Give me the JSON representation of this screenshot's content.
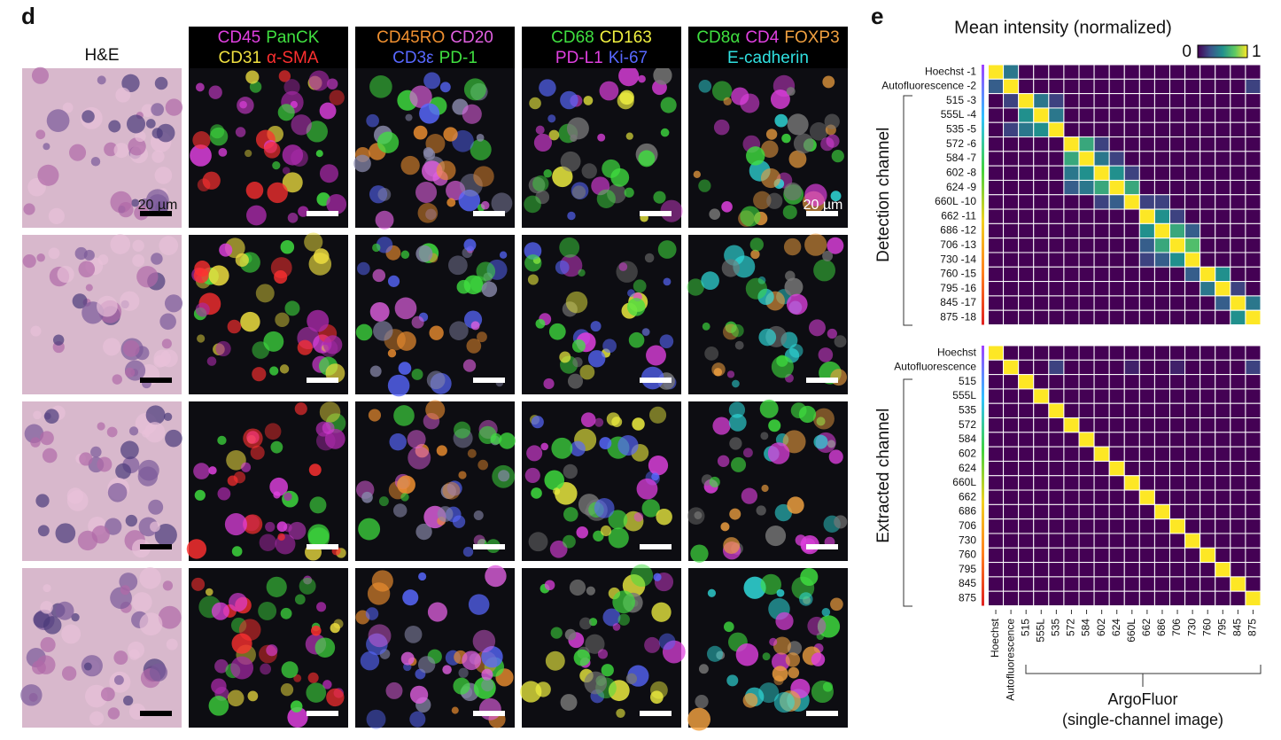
{
  "panel_d": {
    "label": "d",
    "he_title": "H&E",
    "scale_label": "20 µm",
    "headers": [
      [
        [
          {
            "text": "CD45",
            "color": "#e040e0"
          },
          {
            "text": "PanCK",
            "color": "#40e040"
          }
        ],
        [
          {
            "text": "CD31",
            "color": "#f0e040"
          },
          {
            "text": "α-SMA",
            "color": "#ff3030"
          }
        ]
      ],
      [
        [
          {
            "text": "CD45RO",
            "color": "#f09030"
          },
          {
            "text": "CD20",
            "color": "#e060e0"
          }
        ],
        [
          {
            "text": "CD3ε",
            "color": "#5868ff"
          },
          {
            "text": "PD-1",
            "color": "#40e040"
          }
        ]
      ],
      [
        [
          {
            "text": "CD68",
            "color": "#40e040"
          },
          {
            "text": "CD163",
            "color": "#f0f040"
          }
        ],
        [
          {
            "text": "PD-L1",
            "color": "#e040e0"
          },
          {
            "text": "Ki-67",
            "color": "#5868ff"
          }
        ]
      ],
      [
        [
          {
            "text": "CD8α",
            "color": "#40e040"
          },
          {
            "text": "CD4",
            "color": "#e040e0"
          },
          {
            "text": "FOXP3",
            "color": "#f0a040"
          }
        ],
        [
          {
            "text": "E-cadherin",
            "color": "#30e0e0"
          }
        ]
      ]
    ]
  },
  "panel_e": {
    "label": "e",
    "title": "Mean intensity (normalized)",
    "colorbar": {
      "min": 0,
      "max": 1
    },
    "x_label": [
      "ArgoFluor",
      "(single-channel image)"
    ],
    "columns": [
      "Hoechst",
      "Autofluorescence",
      "515",
      "555L",
      "535",
      "572",
      "584",
      "602",
      "624",
      "660L",
      "662",
      "686",
      "706",
      "730",
      "760",
      "795",
      "845",
      "875"
    ],
    "heatmaps": [
      {
        "y_label": "Detection channel",
        "rows": [
          "Hoechst -1",
          "Autofluorescence -2",
          "515 -3",
          "555L -4",
          "535 -5",
          "572 -6",
          "584 -7",
          "602 -8",
          "624 -9",
          "660L -10",
          "662 -11",
          "686 -12",
          "706 -13",
          "730 -14",
          "760 -15",
          "795 -16",
          "845 -17",
          "875 -18"
        ],
        "values": [
          [
            1,
            0.4,
            0,
            0,
            0,
            0,
            0,
            0,
            0,
            0,
            0,
            0,
            0,
            0,
            0,
            0,
            0,
            0
          ],
          [
            0.3,
            1,
            0,
            0,
            0,
            0,
            0,
            0,
            0,
            0,
            0,
            0,
            0,
            0,
            0,
            0,
            0,
            0.2
          ],
          [
            0,
            0.2,
            1,
            0.4,
            0.2,
            0,
            0,
            0,
            0,
            0,
            0,
            0,
            0,
            0,
            0,
            0,
            0,
            0
          ],
          [
            0,
            0,
            0.5,
            1,
            0.4,
            0,
            0,
            0,
            0,
            0,
            0,
            0,
            0,
            0,
            0,
            0,
            0,
            0
          ],
          [
            0,
            0.2,
            0.4,
            0.5,
            1,
            0,
            0,
            0,
            0,
            0,
            0,
            0,
            0,
            0,
            0,
            0,
            0,
            0
          ],
          [
            0,
            0,
            0,
            0,
            0,
            1,
            0.6,
            0.2,
            0,
            0,
            0,
            0,
            0,
            0,
            0,
            0,
            0,
            0
          ],
          [
            0,
            0,
            0,
            0,
            0,
            0.6,
            1,
            0.4,
            0.2,
            0,
            0,
            0,
            0,
            0,
            0,
            0,
            0,
            0
          ],
          [
            0,
            0,
            0,
            0,
            0,
            0.4,
            0.5,
            1,
            0.5,
            0.2,
            0,
            0,
            0,
            0,
            0,
            0,
            0,
            0
          ],
          [
            0,
            0,
            0,
            0,
            0,
            0.3,
            0.4,
            0.6,
            1,
            0.6,
            0,
            0,
            0,
            0,
            0,
            0,
            0,
            0
          ],
          [
            0,
            0,
            0,
            0,
            0,
            0,
            0,
            0.2,
            0.3,
            1,
            0.2,
            0.2,
            0,
            0,
            0,
            0,
            0,
            0
          ],
          [
            0,
            0,
            0,
            0,
            0,
            0,
            0,
            0,
            0,
            0,
            1,
            0.5,
            0.2,
            0,
            0,
            0,
            0,
            0
          ],
          [
            0,
            0,
            0,
            0,
            0,
            0,
            0,
            0,
            0,
            0,
            0.5,
            1,
            0.6,
            0.3,
            0,
            0,
            0,
            0
          ],
          [
            0,
            0,
            0,
            0,
            0,
            0,
            0,
            0,
            0,
            0,
            0.3,
            0.6,
            1,
            0.7,
            0,
            0,
            0,
            0
          ],
          [
            0,
            0,
            0,
            0,
            0,
            0,
            0,
            0,
            0,
            0,
            0.2,
            0.3,
            0.5,
            1,
            0,
            0,
            0,
            0
          ],
          [
            0,
            0,
            0,
            0,
            0,
            0,
            0,
            0,
            0,
            0,
            0,
            0,
            0,
            0.3,
            1,
            0.5,
            0,
            0
          ],
          [
            0,
            0,
            0,
            0,
            0,
            0,
            0,
            0,
            0,
            0,
            0,
            0,
            0,
            0,
            0.4,
            1,
            0.2,
            0
          ],
          [
            0,
            0,
            0,
            0,
            0,
            0,
            0,
            0,
            0,
            0,
            0,
            0,
            0,
            0,
            0,
            0.3,
            1,
            0.4
          ],
          [
            0,
            0,
            0,
            0,
            0,
            0,
            0,
            0,
            0,
            0,
            0,
            0,
            0,
            0,
            0,
            0,
            0.5,
            1
          ]
        ]
      },
      {
        "y_label": "Extracted channel",
        "rows": [
          "Hoechst",
          "Autofluorescence",
          "515",
          "555L",
          "535",
          "572",
          "584",
          "602",
          "624",
          "660L",
          "662",
          "686",
          "706",
          "730",
          "760",
          "795",
          "845",
          "875"
        ],
        "values": [
          [
            1,
            0,
            0,
            0,
            0,
            0,
            0,
            0,
            0,
            0,
            0,
            0,
            0,
            0,
            0,
            0,
            0,
            0
          ],
          [
            0,
            1,
            0,
            0,
            0.2,
            0,
            0,
            0,
            0,
            0.1,
            0,
            0,
            0.1,
            0,
            0,
            0,
            0,
            0.2
          ],
          [
            0,
            0,
            1,
            0,
            0,
            0,
            0,
            0,
            0,
            0,
            0,
            0,
            0,
            0,
            0,
            0,
            0,
            0
          ],
          [
            0,
            0,
            0,
            1,
            0,
            0,
            0,
            0,
            0,
            0,
            0,
            0,
            0,
            0,
            0,
            0,
            0,
            0
          ],
          [
            0,
            0,
            0,
            0,
            1,
            0,
            0,
            0,
            0,
            0,
            0,
            0,
            0,
            0,
            0,
            0,
            0,
            0
          ],
          [
            0,
            0,
            0,
            0,
            0,
            1,
            0,
            0,
            0,
            0,
            0,
            0,
            0,
            0,
            0,
            0,
            0,
            0
          ],
          [
            0,
            0,
            0,
            0,
            0,
            0,
            1,
            0,
            0,
            0,
            0,
            0,
            0,
            0,
            0,
            0,
            0,
            0
          ],
          [
            0,
            0,
            0,
            0,
            0,
            0,
            0,
            1,
            0,
            0,
            0,
            0,
            0,
            0,
            0,
            0,
            0,
            0
          ],
          [
            0,
            0,
            0,
            0,
            0,
            0,
            0,
            0,
            1,
            0,
            0,
            0,
            0,
            0,
            0,
            0,
            0,
            0
          ],
          [
            0,
            0,
            0,
            0,
            0,
            0,
            0,
            0,
            0,
            1,
            0,
            0,
            0,
            0,
            0,
            0,
            0,
            0
          ],
          [
            0,
            0,
            0,
            0,
            0,
            0,
            0,
            0,
            0,
            0,
            1,
            0,
            0,
            0,
            0,
            0,
            0,
            0
          ],
          [
            0,
            0,
            0,
            0,
            0,
            0,
            0,
            0,
            0,
            0,
            0,
            1,
            0,
            0,
            0,
            0,
            0,
            0
          ],
          [
            0,
            0,
            0,
            0,
            0,
            0,
            0,
            0,
            0,
            0,
            0,
            0,
            1,
            0,
            0,
            0,
            0,
            0
          ],
          [
            0,
            0,
            0,
            0,
            0,
            0,
            0,
            0,
            0,
            0,
            0,
            0,
            0,
            1,
            0,
            0,
            0,
            0
          ],
          [
            0,
            0,
            0,
            0,
            0,
            0,
            0,
            0,
            0,
            0,
            0,
            0,
            0,
            0,
            1,
            0,
            0,
            0
          ],
          [
            0,
            0,
            0,
            0,
            0,
            0,
            0,
            0,
            0,
            0,
            0,
            0,
            0,
            0,
            0,
            1,
            0,
            0
          ],
          [
            0,
            0,
            0,
            0,
            0,
            0,
            0,
            0,
            0,
            0,
            0,
            0,
            0,
            0,
            0,
            0,
            1,
            0
          ],
          [
            0,
            0,
            0,
            0,
            0,
            0,
            0,
            0,
            0,
            0,
            0,
            0,
            0,
            0,
            0,
            0,
            0,
            1
          ]
        ]
      }
    ]
  }
}
